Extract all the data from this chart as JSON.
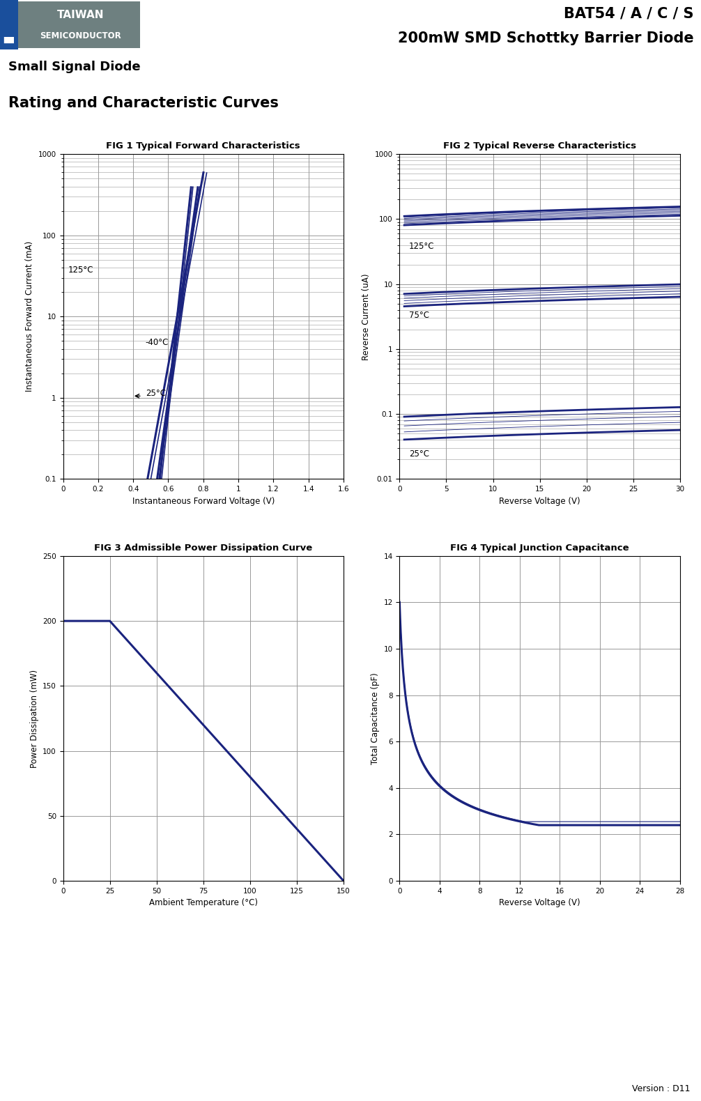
{
  "title_line1": "BAT54 / A / C / S",
  "title_line2": "200mW SMD Schottky Barrier Diode",
  "subtitle1": "Small Signal Diode",
  "subtitle2": "Rating and Characteristic Curves",
  "fig1_title": "FIG 1 Typical Forward Characteristics",
  "fig2_title": "FIG 2 Typical Reverse Characteristics",
  "fig3_title": "FIG 3 Admissible Power Dissipation Curve",
  "fig4_title": "FIG 4 Typical Junction Capacitance",
  "fig1_xlabel": "Instantaneous Forward Voltage (V)",
  "fig1_ylabel": "Instantaneous Forward Current (mA)",
  "fig2_xlabel": "Reverse Voltage (V)",
  "fig2_ylabel": "Reverse Current (uA)",
  "fig3_xlabel": "Ambient Temperature (°C)",
  "fig3_ylabel": "Power Dissipation (mW)",
  "fig4_xlabel": "Reverse Voltage (V)",
  "fig4_ylabel": "Total Capacitance (pF)",
  "curve_color": "#1a237e",
  "grid_color": "#999999",
  "bg_color": "#ffffff",
  "version_text": "Version : D11",
  "logo_grey": "#6e8080",
  "logo_blue": "#1a4f9c"
}
